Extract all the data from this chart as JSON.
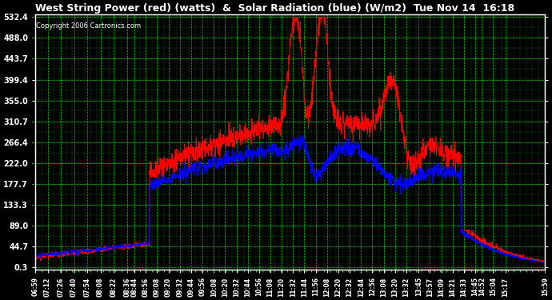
{
  "title": "West String Power (red) (watts)  &  Solar Radiation (blue) (W/m2)  Tue Nov 14  16:18",
  "copyright": "Copyright 2006 Cartronics.com",
  "background_color": "#000000",
  "plot_bg_color": "#000000",
  "title_color": "#ffffff",
  "copyright_color": "#ffffff",
  "grid_color": "#00ff00",
  "ytick_labels": [
    "532.4",
    "488.0",
    "443.7",
    "399.4",
    "355.0",
    "310.7",
    "266.4",
    "222.0",
    "177.7",
    "133.3",
    "89.0",
    "44.7",
    "0.3"
  ],
  "ytick_values": [
    532.4,
    488.0,
    443.7,
    399.4,
    355.0,
    310.7,
    266.4,
    222.0,
    177.7,
    133.3,
    89.0,
    44.7,
    0.3
  ],
  "xtick_labels": [
    "06:59",
    "07:12",
    "07:26",
    "07:40",
    "07:54",
    "08:08",
    "08:22",
    "08:36",
    "08:44",
    "08:56",
    "09:08",
    "09:20",
    "09:32",
    "09:44",
    "09:56",
    "10:08",
    "10:20",
    "10:32",
    "10:44",
    "10:56",
    "11:08",
    "11:20",
    "11:32",
    "11:44",
    "11:56",
    "12:08",
    "12:20",
    "12:32",
    "12:44",
    "12:56",
    "13:08",
    "13:20",
    "13:32",
    "13:45",
    "13:57",
    "14:09",
    "14:21",
    "14:33",
    "14:45",
    "14:52",
    "15:04",
    "15:17",
    "15:59"
  ],
  "red_line_color": "#ff0000",
  "blue_line_color": "#0000ff",
  "ymin": 0.3,
  "ymax": 532.4
}
